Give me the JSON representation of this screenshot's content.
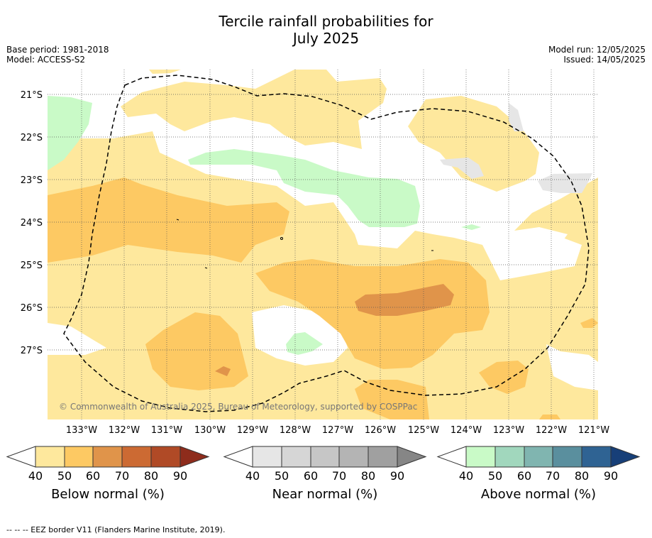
{
  "header": {
    "title_line1": "Tercile rainfall probabilities for",
    "title_line2": "July 2025",
    "base_period": "Base period: 1981-2018",
    "model": "Model: ACCESS-S2",
    "model_run": "Model run: 12/05/2025",
    "issued": "Issued: 14/05/2025"
  },
  "map": {
    "lat_labels": [
      "21°S",
      "22°S",
      "23°S",
      "24°S",
      "25°S",
      "26°S",
      "27°S"
    ],
    "lon_labels": [
      "133°W",
      "132°W",
      "131°W",
      "130°W",
      "129°W",
      "128°W",
      "127°W",
      "126°W",
      "125°W",
      "124°W",
      "123°W",
      "122°W",
      "121°W"
    ],
    "copyright": "© Commonwealth of Australia 2025, Bureau of Meteorology, supported by COSPPac"
  },
  "colorbars": [
    {
      "label": "Below normal (%)",
      "ticks": [
        "40",
        "50",
        "60",
        "70",
        "80",
        "90"
      ],
      "colors": [
        "#fee89d",
        "#fdc963",
        "#e0944a",
        "#cc6a33",
        "#b04a26",
        "#8e2c1c"
      ]
    },
    {
      "label": "Near normal (%)",
      "ticks": [
        "40",
        "50",
        "60",
        "70",
        "80",
        "90"
      ],
      "colors": [
        "#e6e6e6",
        "#d6d6d6",
        "#c6c6c6",
        "#b4b4b4",
        "#a0a0a0",
        "#868686"
      ]
    },
    {
      "label": "Above normal (%)",
      "ticks": [
        "40",
        "50",
        "60",
        "70",
        "80",
        "90"
      ],
      "colors": [
        "#c9fac7",
        "#a1d7bd",
        "#80b5b0",
        "#5a8f9e",
        "#2f6393",
        "#173f78"
      ]
    }
  ],
  "footer": {
    "legend_text": "--  --  -- EEZ border V11 (Flanders Marine Institute, 2019)."
  }
}
